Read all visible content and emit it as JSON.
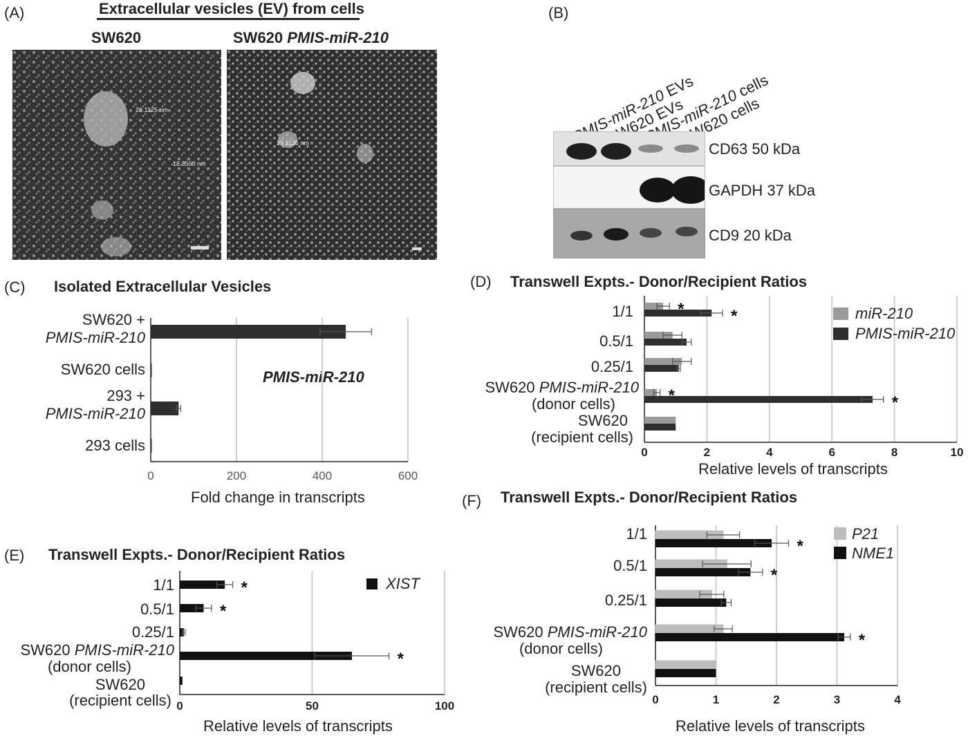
{
  "panelA": {
    "letter": "(A)",
    "title": "Extracellular vesicles (EV) from cells",
    "left_label": "SW620",
    "right_label_prefix": "SW620 ",
    "right_label_italic": "PMIS-miR-210",
    "annotations_left": [
      "29.1125 nm",
      "18.3500 nm"
    ],
    "annotations_right": [
      "29.1125 nm"
    ]
  },
  "panelB": {
    "letter": "(B)",
    "lanes": [
      {
        "italic": "PMIS-miR-210",
        "rest": " EVs"
      },
      {
        "italic": "",
        "rest": "SW620 EVs"
      },
      {
        "italic": "PMIS-miR-210",
        "rest": " cells"
      },
      {
        "italic": "",
        "rest": "SW620 cells"
      }
    ],
    "bands": [
      "CD63 50 kDa",
      "GAPDH 37 kDa",
      "CD9 20 kDa"
    ]
  },
  "chart_data": [
    {
      "panel": "(C)",
      "type": "bar",
      "orientation": "horizontal",
      "title": "Isolated Extracellular Vesicles",
      "xlabel": "Fold change in transcripts",
      "xlim": [
        0,
        600
      ],
      "xticks": [
        0,
        200,
        400,
        600
      ],
      "annotation": "PMIS-miR-210",
      "categories": [
        "SW620 + PMIS-miR-210",
        "SW620 cells",
        "293 + PMIS-miR-210",
        "293 cells"
      ],
      "series": [
        {
          "color": "#2e2e2e",
          "values": [
            455,
            2,
            65,
            1
          ],
          "errors": [
            60,
            0,
            5,
            0
          ]
        }
      ],
      "grid": true
    },
    {
      "panel": "(D)",
      "type": "bar",
      "orientation": "horizontal",
      "title": "Transwell Expts.- Donor/Recipient Ratios",
      "xlabel": "Relative levels of transcripts",
      "xlim": [
        0,
        10
      ],
      "xticks": [
        0,
        2,
        4,
        6,
        8,
        10
      ],
      "categories": [
        "1/1",
        "0.5/1",
        "0.25/1",
        "SW620 PMIS-miR-210 (donor cells)",
        "SW620 (recipient cells)"
      ],
      "series": [
        {
          "name": "miR-210",
          "color": "#9a9a9a",
          "values": [
            0.6,
            0.9,
            1.2,
            0.4,
            1.0
          ],
          "errors": [
            0.2,
            0.3,
            0.3,
            0.1,
            0
          ]
        },
        {
          "name": "PMIS-miR-210",
          "color": "#2e2e2e",
          "values": [
            2.15,
            1.35,
            1.1,
            7.3,
            1.0
          ],
          "errors": [
            0.35,
            0.15,
            0.05,
            0.35,
            0
          ]
        }
      ],
      "significance": [
        [
          "*",
          "*"
        ],
        [
          "",
          ""
        ],
        [
          "",
          ""
        ],
        [
          "*",
          "*"
        ],
        [
          "",
          ""
        ]
      ],
      "legend": "top-right",
      "grid": true
    },
    {
      "panel": "(E)",
      "type": "bar",
      "orientation": "horizontal",
      "title": "Transwell Expts.- Donor/Recipient Ratios",
      "xlabel": "Relative levels of transcripts",
      "xlim": [
        0,
        100
      ],
      "xticks": [
        0,
        50,
        100
      ],
      "categories": [
        "1/1",
        "0.5/1",
        "0.25/1",
        "SW620 PMIS-miR-210 (donor cells)",
        "SW620 (recipient cells)"
      ],
      "series": [
        {
          "name": "XIST",
          "color": "#111111",
          "values": [
            17,
            9,
            1.5,
            65,
            1
          ],
          "errors": [
            3,
            3,
            0.5,
            14,
            0
          ]
        }
      ],
      "significance": [
        [
          "*"
        ],
        [
          "*"
        ],
        [
          ""
        ],
        [
          "*"
        ],
        [
          ""
        ]
      ],
      "legend": "top-right",
      "grid": true
    },
    {
      "panel": "(F)",
      "type": "bar",
      "orientation": "horizontal",
      "title": "Transwell Expts.- Donor/Recipient Ratios",
      "xlabel": "Relative levels of transcripts",
      "xlim": [
        0,
        4
      ],
      "xticks": [
        0,
        1,
        2,
        3,
        4
      ],
      "categories": [
        "1/1",
        "0.5/1",
        "0.25/1",
        "SW620 PMIS-miR-210 (donor cells)",
        "SW620 (recipient cells)"
      ],
      "series": [
        {
          "name": "P21",
          "color": "#bdbdbd",
          "values": [
            1.12,
            1.18,
            0.93,
            1.12,
            1.0
          ],
          "errors": [
            0.27,
            0.4,
            0.2,
            0.15,
            0
          ]
        },
        {
          "name": "NME1",
          "color": "#111111",
          "values": [
            1.92,
            1.57,
            1.17,
            3.12,
            1.0
          ],
          "errors": [
            0.28,
            0.2,
            0.08,
            0.1,
            0
          ]
        }
      ],
      "significance": [
        [
          "",
          "*"
        ],
        [
          "",
          "*"
        ],
        [
          "",
          ""
        ],
        [
          "",
          "*"
        ],
        [
          "",
          ""
        ]
      ],
      "legend": "top-right",
      "grid": true
    }
  ],
  "category_labels": {
    "C": [
      {
        "line1": "SW620 +",
        "line2_italic": "PMIS-miR-210"
      },
      {
        "line1": "SW620 cells"
      },
      {
        "line1": "293 +",
        "line2_italic": "PMIS-miR-210"
      },
      {
        "line1": "293 cells"
      }
    ],
    "DEF": [
      {
        "line1": "1/1"
      },
      {
        "line1": "0.5/1"
      },
      {
        "line1": "0.25/1"
      },
      {
        "line1_prefix": "SW620 ",
        "line1_italic": "PMIS-miR-210",
        "line2": "(donor cells)"
      },
      {
        "line1": "SW620",
        "line2": "(recipient cells)"
      }
    ]
  }
}
